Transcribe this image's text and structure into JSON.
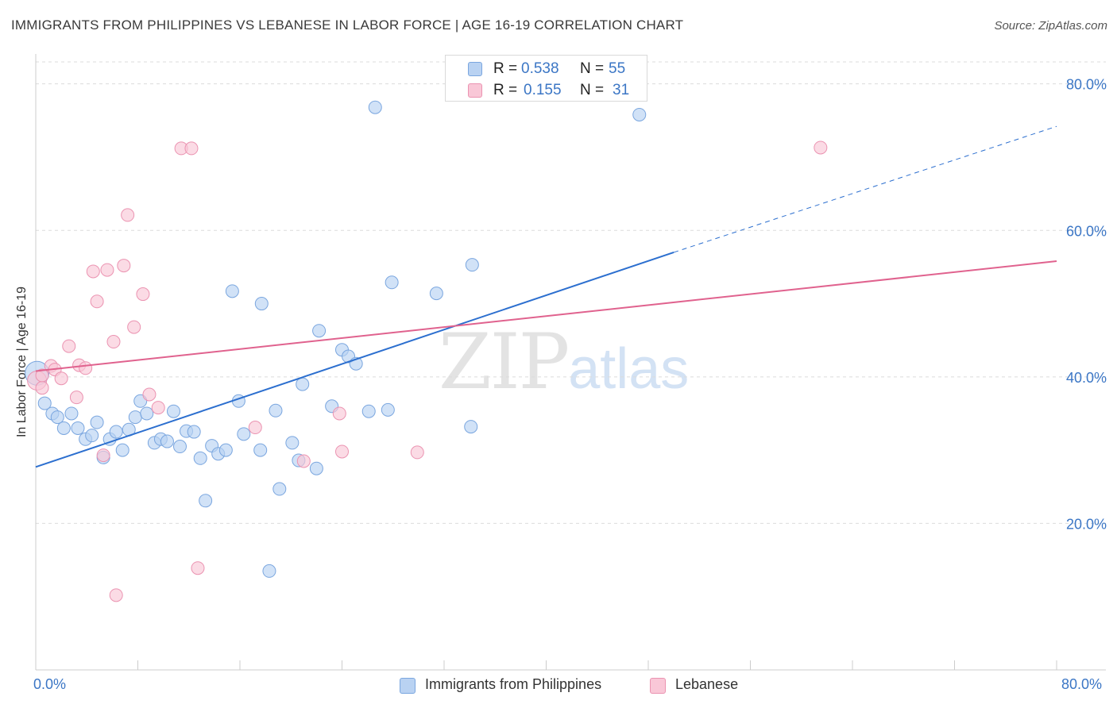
{
  "title": "IMMIGRANTS FROM PHILIPPINES VS LEBANESE IN LABOR FORCE | AGE 16-19 CORRELATION CHART",
  "source": "Source: ZipAtlas.com",
  "watermark": {
    "zip": "ZIP",
    "atlas": "atlas"
  },
  "colors": {
    "blue_fill": "#b9d2f2",
    "blue_stroke": "#7aa6df",
    "blue_line": "#2c6fcf",
    "pink_fill": "#f9c7d7",
    "pink_stroke": "#eb93b1",
    "pink_line": "#e0628e",
    "grid": "#dcdcdc",
    "tick_text": "#3b76c5"
  },
  "legend_top": {
    "series": [
      {
        "r_label": "R =",
        "r_value": "0.538",
        "n_label": "N =",
        "n_value": "55"
      },
      {
        "r_label": "R =",
        "r_value": "0.155",
        "n_label": "N =",
        "n_value": "31"
      }
    ]
  },
  "legend_bottom": [
    "Immigrants from Philippines",
    "Lebanese"
  ],
  "chart_data": {
    "type": "scatter",
    "title": "IMMIGRANTS FROM PHILIPPINES VS LEBANESE IN LABOR FORCE | AGE 16-19 CORRELATION CHART",
    "xlabel": "",
    "ylabel": "In Labor Force | Age 16-19",
    "xlim": [
      0,
      80
    ],
    "ylim": [
      0,
      83
    ],
    "x_tick_labels": [
      "0.0%",
      "80.0%"
    ],
    "y_ticks": [
      20,
      40,
      60,
      80
    ],
    "y_tick_labels": [
      "20.0%",
      "40.0%",
      "60.0%",
      "80.0%"
    ],
    "grid": true,
    "series": [
      {
        "name": "Immigrants from Philippines",
        "r": 0.538,
        "n": 55,
        "trend": {
          "x0": 0,
          "y0": 27.7,
          "x1": 50,
          "y1": 57.0,
          "dash_to_x": 80,
          "dash_to_y": 74.2
        },
        "points": [
          [
            0.1,
            40.5
          ],
          [
            0.7,
            36.4
          ],
          [
            1.3,
            35.0
          ],
          [
            1.7,
            34.5
          ],
          [
            2.2,
            33.0
          ],
          [
            2.8,
            35.0
          ],
          [
            3.3,
            33.0
          ],
          [
            3.9,
            31.5
          ],
          [
            4.4,
            32.0
          ],
          [
            4.8,
            33.8
          ],
          [
            5.3,
            29.0
          ],
          [
            5.8,
            31.5
          ],
          [
            6.3,
            32.5
          ],
          [
            6.8,
            30.0
          ],
          [
            7.3,
            32.8
          ],
          [
            7.8,
            34.5
          ],
          [
            8.2,
            36.7
          ],
          [
            8.7,
            35.0
          ],
          [
            9.3,
            31.0
          ],
          [
            9.8,
            31.5
          ],
          [
            10.3,
            31.2
          ],
          [
            10.8,
            35.3
          ],
          [
            11.3,
            30.5
          ],
          [
            11.8,
            32.6
          ],
          [
            12.4,
            32.5
          ],
          [
            12.9,
            28.9
          ],
          [
            13.3,
            23.1
          ],
          [
            13.8,
            30.6
          ],
          [
            14.3,
            29.5
          ],
          [
            14.9,
            30.0
          ],
          [
            15.4,
            51.7
          ],
          [
            15.9,
            36.7
          ],
          [
            16.3,
            32.2
          ],
          [
            17.6,
            30.0
          ],
          [
            17.7,
            50.0
          ],
          [
            18.3,
            13.5
          ],
          [
            18.8,
            35.4
          ],
          [
            19.1,
            24.7
          ],
          [
            20.1,
            31.0
          ],
          [
            20.6,
            28.6
          ],
          [
            20.9,
            39.0
          ],
          [
            22.0,
            27.5
          ],
          [
            22.2,
            46.3
          ],
          [
            23.2,
            36.0
          ],
          [
            24.0,
            43.7
          ],
          [
            24.5,
            42.8
          ],
          [
            25.1,
            41.8
          ],
          [
            26.1,
            35.3
          ],
          [
            26.6,
            76.8
          ],
          [
            27.6,
            35.5
          ],
          [
            27.9,
            52.9
          ],
          [
            31.4,
            51.4
          ],
          [
            34.1,
            33.2
          ],
          [
            34.2,
            55.3
          ],
          [
            47.3,
            75.8
          ]
        ]
      },
      {
        "name": "Lebanese",
        "r": 0.155,
        "n": 31,
        "trend": {
          "x0": 0,
          "y0": 40.8,
          "x1": 80,
          "y1": 55.8
        },
        "points": [
          [
            0.1,
            39.5
          ],
          [
            0.5,
            38.5
          ],
          [
            1.2,
            41.5
          ],
          [
            1.5,
            41.0
          ],
          [
            2.0,
            39.8
          ],
          [
            2.6,
            44.2
          ],
          [
            3.2,
            37.2
          ],
          [
            3.4,
            41.6
          ],
          [
            3.9,
            41.2
          ],
          [
            4.5,
            54.4
          ],
          [
            4.8,
            50.3
          ],
          [
            5.3,
            29.3
          ],
          [
            5.6,
            54.6
          ],
          [
            6.1,
            44.8
          ],
          [
            6.3,
            10.2
          ],
          [
            6.9,
            55.2
          ],
          [
            7.2,
            62.1
          ],
          [
            7.7,
            46.8
          ],
          [
            8.4,
            51.3
          ],
          [
            8.9,
            37.6
          ],
          [
            9.6,
            35.8
          ],
          [
            11.4,
            71.2
          ],
          [
            12.2,
            71.2
          ],
          [
            12.7,
            13.9
          ],
          [
            17.2,
            33.1
          ],
          [
            21.0,
            28.5
          ],
          [
            23.8,
            35.0
          ],
          [
            24.0,
            29.8
          ],
          [
            29.9,
            29.7
          ],
          [
            61.5,
            71.3
          ],
          [
            0.5,
            40.2
          ]
        ]
      }
    ]
  }
}
